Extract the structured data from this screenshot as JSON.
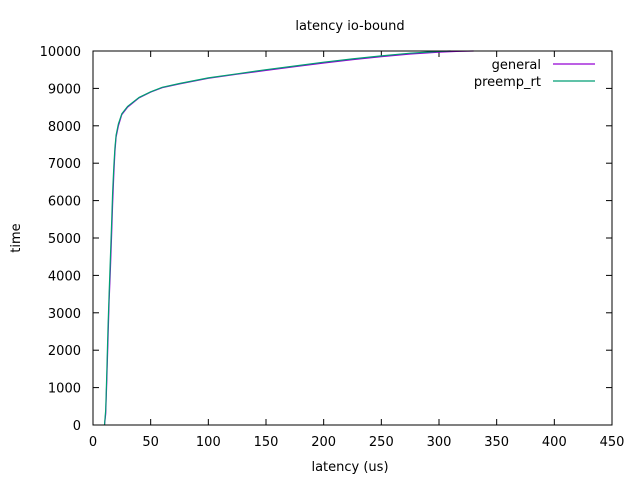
{
  "chart_data": {
    "type": "line",
    "title": "latency io-bound",
    "xlabel": "latency (us)",
    "ylabel": "time",
    "xlim": [
      0,
      450
    ],
    "ylim": [
      0,
      10000
    ],
    "xticks": [
      0,
      50,
      100,
      150,
      200,
      250,
      300,
      350,
      400,
      450
    ],
    "yticks": [
      0,
      1000,
      2000,
      3000,
      4000,
      5000,
      6000,
      7000,
      8000,
      9000,
      10000
    ],
    "grid": false,
    "legend_position": "top-right",
    "series": [
      {
        "name": "general",
        "color": "#9400d3",
        "points": [
          [
            10,
            0
          ],
          [
            11,
            300
          ],
          [
            12,
            1200
          ],
          [
            13,
            2300
          ],
          [
            14,
            3300
          ],
          [
            15,
            4100
          ],
          [
            16,
            5000
          ],
          [
            17,
            5900
          ],
          [
            18,
            6700
          ],
          [
            19,
            7300
          ],
          [
            20,
            7700
          ],
          [
            22,
            8000
          ],
          [
            25,
            8300
          ],
          [
            30,
            8500
          ],
          [
            40,
            8750
          ],
          [
            50,
            8900
          ],
          [
            60,
            9020
          ],
          [
            75,
            9120
          ],
          [
            100,
            9270
          ],
          [
            125,
            9380
          ],
          [
            150,
            9480
          ],
          [
            175,
            9580
          ],
          [
            200,
            9680
          ],
          [
            225,
            9770
          ],
          [
            250,
            9850
          ],
          [
            275,
            9920
          ],
          [
            300,
            9970
          ],
          [
            315,
            9990
          ],
          [
            330,
            10000
          ]
        ]
      },
      {
        "name": "preemp_rt",
        "color": "#009e73",
        "points": [
          [
            10,
            0
          ],
          [
            11,
            400
          ],
          [
            12,
            1400
          ],
          [
            13,
            2600
          ],
          [
            14,
            3500
          ],
          [
            15,
            4400
          ],
          [
            16,
            5300
          ],
          [
            17,
            6200
          ],
          [
            18,
            6900
          ],
          [
            19,
            7400
          ],
          [
            20,
            7750
          ],
          [
            22,
            8050
          ],
          [
            25,
            8320
          ],
          [
            30,
            8520
          ],
          [
            40,
            8760
          ],
          [
            50,
            8910
          ],
          [
            60,
            9030
          ],
          [
            75,
            9130
          ],
          [
            100,
            9280
          ],
          [
            125,
            9390
          ],
          [
            150,
            9500
          ],
          [
            175,
            9600
          ],
          [
            200,
            9700
          ],
          [
            225,
            9790
          ],
          [
            250,
            9870
          ],
          [
            275,
            9940
          ],
          [
            290,
            9970
          ],
          [
            300,
            9990
          ],
          [
            310,
            10000
          ]
        ]
      }
    ]
  }
}
